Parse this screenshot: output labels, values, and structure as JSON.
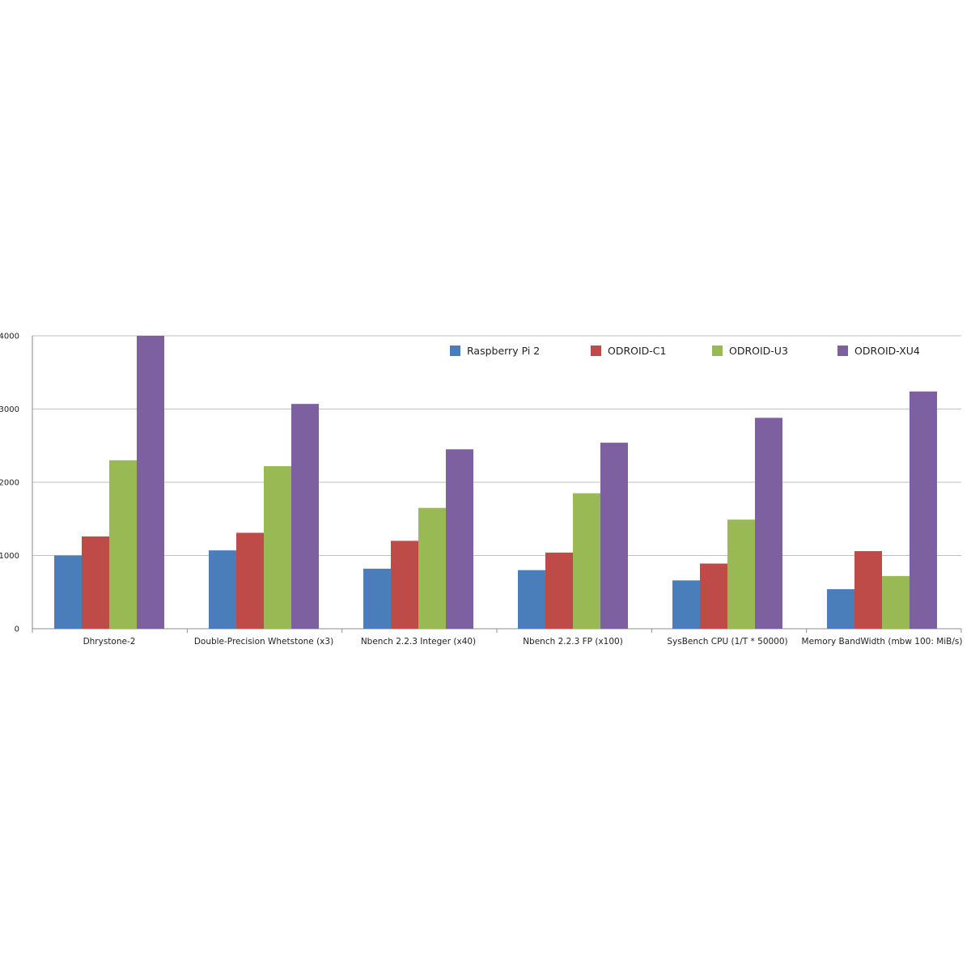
{
  "chart_data": {
    "type": "bar",
    "title": "",
    "xlabel": "",
    "ylabel": "",
    "ylim": [
      0,
      4000
    ],
    "yticks": [
      0,
      1000,
      2000,
      3000,
      4000
    ],
    "ytick_labels": [
      "0",
      "1000",
      "2000",
      "3000",
      "4000"
    ],
    "grid": true,
    "legend_position": "top-right",
    "categories": [
      "Dhrystone-2",
      "Double-Precision Whetstone (x3)",
      "Nbench 2.2.3 Integer (x40)",
      "Nbench 2.2.3 FP (x100)",
      "SysBench CPU (1/T * 50000)",
      "Memory BandWidth (mbw 100: MiB/s)"
    ],
    "series": [
      {
        "name": "Raspberry Pi 2",
        "color": "#4a7ebb",
        "values": [
          1000,
          1070,
          820,
          800,
          660,
          540
        ]
      },
      {
        "name": "ODROID-C1",
        "color": "#be4b48",
        "values": [
          1260,
          1310,
          1200,
          1040,
          890,
          1060
        ]
      },
      {
        "name": "ODROID-U3",
        "color": "#98b954",
        "values": [
          2300,
          2220,
          1650,
          1850,
          1490,
          720
        ]
      },
      {
        "name": "ODROID-XU4",
        "color": "#7d60a0",
        "values": [
          4000,
          3070,
          2450,
          2540,
          2880,
          3240
        ]
      }
    ]
  }
}
